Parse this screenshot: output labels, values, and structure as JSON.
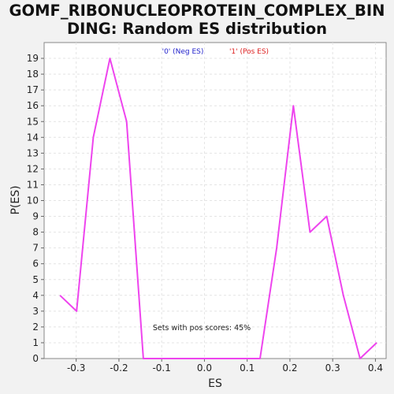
{
  "chart_data": {
    "type": "line",
    "title": "GOMF_RIBONUCLEOPROTEIN_COMPLEX_BINDING: Random ES distribution",
    "title_lines": [
      "GOMF_RIBONUCLEOPROTEIN_COMPLEX_BIN",
      "DING: Random ES distribution"
    ],
    "xlabel": "ES",
    "ylabel": "P(ES)",
    "xlim": [
      -0.375,
      0.425
    ],
    "ylim": [
      0,
      20
    ],
    "x_ticks": [
      -0.3,
      -0.2,
      -0.1,
      0.0,
      0.1,
      0.2,
      0.3,
      0.4
    ],
    "x_tick_labels": [
      "-0.3",
      "-0.2",
      "-0.1",
      "0.0",
      "0.1",
      "0.2",
      "0.3",
      "0.4"
    ],
    "y_ticks": [
      0,
      1,
      2,
      3,
      4,
      5,
      6,
      7,
      8,
      9,
      10,
      11,
      12,
      13,
      14,
      15,
      16,
      17,
      18,
      19
    ],
    "y_tick_labels": [
      "0",
      "1",
      "2",
      "3",
      "4",
      "5",
      "6",
      "7",
      "8",
      "9",
      "10",
      "11",
      "12",
      "13",
      "14",
      "15",
      "16",
      "17",
      "18",
      "19"
    ],
    "grid": true,
    "legend": [
      {
        "label": "'0' (Neg ES)",
        "color": "#2222cc"
      },
      {
        "label": "'1' (Pos ES)",
        "color": "#dd2222"
      }
    ],
    "legend_position": "top-center",
    "annotation": "Sets with pos scores: 45%",
    "series": [
      {
        "color": "#ee44ee",
        "x": [
          -0.338,
          -0.299,
          -0.26,
          -0.221,
          -0.182,
          -0.143,
          -0.104,
          -0.065,
          -0.026,
          0.013,
          0.052,
          0.091,
          0.13,
          0.169,
          0.208,
          0.247,
          0.286,
          0.325,
          0.364,
          0.403
        ],
        "y": [
          4,
          3,
          14,
          19,
          15,
          0,
          0,
          0,
          0,
          0,
          0,
          0,
          0,
          7,
          16,
          8,
          9,
          4,
          0,
          1
        ]
      }
    ]
  }
}
